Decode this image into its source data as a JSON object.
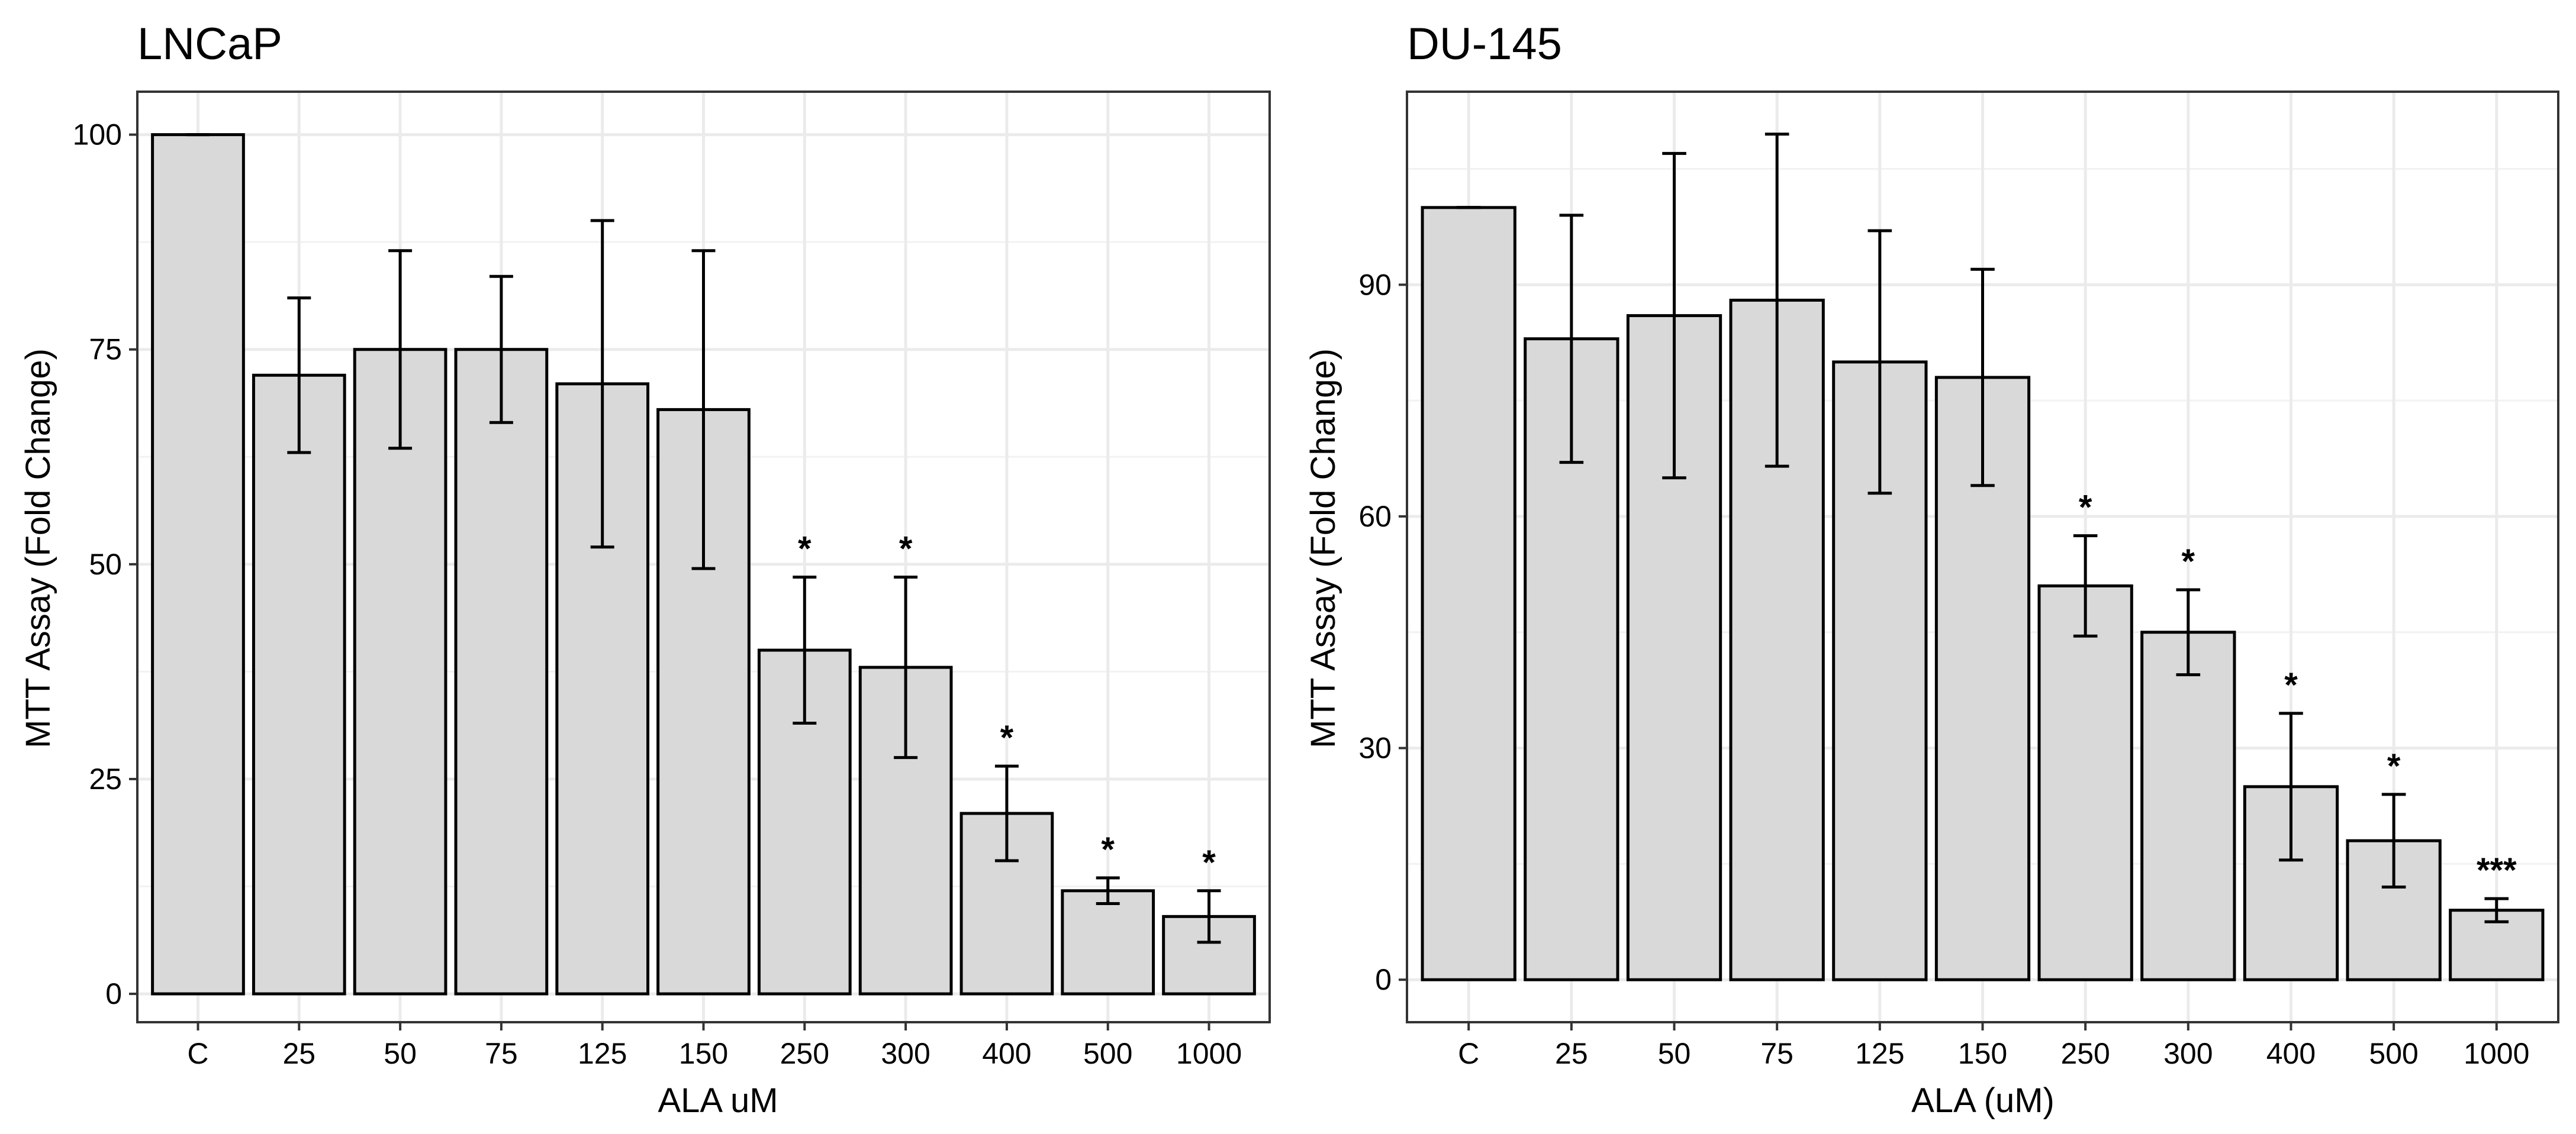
{
  "chart_data": [
    {
      "type": "bar",
      "title": "LNCaP",
      "xlabel": "ALA uM",
      "ylabel": "MTT Assay (Fold Change)",
      "categories": [
        "C",
        "25",
        "50",
        "75",
        "125",
        "150",
        "250",
        "300",
        "400",
        "500",
        "1000"
      ],
      "values": [
        100,
        72,
        75,
        75,
        71,
        68,
        40,
        38,
        21,
        12,
        9
      ],
      "error_low": [
        100,
        63,
        63.5,
        66.5,
        52,
        49.5,
        31.5,
        27.5,
        15.5,
        10.5,
        6
      ],
      "error_high": [
        100,
        81,
        86.5,
        83.5,
        90,
        86.5,
        48.5,
        48.5,
        26.5,
        13.5,
        12
      ],
      "significance": [
        "",
        "",
        "",
        "",
        "",
        "",
        "*",
        "*",
        "*",
        "*",
        "*"
      ],
      "yticks": [
        "0",
        "25",
        "50",
        "75",
        "100"
      ],
      "ytick_values": [
        0,
        25,
        50,
        75,
        100
      ],
      "ylim": [
        -3.3,
        105
      ],
      "grid": true,
      "bar_color": "#d9d9d9"
    },
    {
      "type": "bar",
      "title": "DU-145",
      "xlabel": "ALA (uM)",
      "ylabel": "MTT Assay (Fold Change)",
      "categories": [
        "C",
        "25",
        "50",
        "75",
        "125",
        "150",
        "250",
        "300",
        "400",
        "500",
        "1000"
      ],
      "values": [
        100,
        83,
        86,
        88,
        80,
        78,
        51,
        45,
        25,
        18,
        9
      ],
      "error_low": [
        100,
        67,
        65,
        66.5,
        63,
        64,
        44.5,
        39.5,
        15.5,
        12,
        7.5
      ],
      "error_high": [
        100,
        99,
        107,
        109.5,
        97,
        92,
        57.5,
        50.5,
        34.5,
        24,
        10.5
      ],
      "significance": [
        "",
        "",
        "",
        "",
        "",
        "",
        "*",
        "*",
        "*",
        "*",
        "***"
      ],
      "yticks": [
        "0",
        "30",
        "60",
        "90"
      ],
      "ytick_values": [
        0,
        30,
        60,
        90
      ],
      "ylim": [
        -5.5,
        115
      ],
      "grid": true,
      "bar_color": "#d9d9d9"
    }
  ]
}
